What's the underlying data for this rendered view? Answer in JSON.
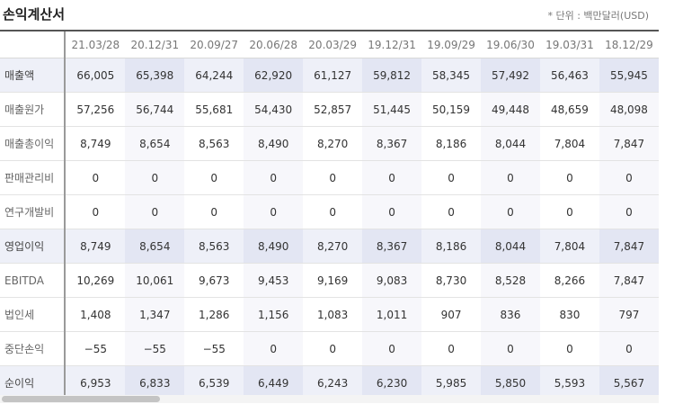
{
  "title": "손익계산서",
  "unit": "* 단위 : 백만달러(USD)",
  "columns": [
    "21.03/28",
    "20.12/31",
    "20.09/27",
    "20.06/28",
    "20.03/29",
    "19.12/31",
    "19.09/29",
    "19.06/30",
    "19.03/31",
    "18.12/29"
  ],
  "rows": [
    {
      "label": "매출액",
      "highlight": true,
      "values": [
        "66,005",
        "65,398",
        "64,244",
        "62,920",
        "61,127",
        "59,812",
        "58,345",
        "57,492",
        "56,463",
        "55,945"
      ]
    },
    {
      "label": "매출원가",
      "highlight": false,
      "values": [
        "57,256",
        "56,744",
        "55,681",
        "54,430",
        "52,857",
        "51,445",
        "50,159",
        "49,448",
        "48,659",
        "48,098"
      ]
    },
    {
      "label": "매출총이익",
      "highlight": false,
      "values": [
        "8,749",
        "8,654",
        "8,563",
        "8,490",
        "8,270",
        "8,367",
        "8,186",
        "8,044",
        "7,804",
        "7,847"
      ]
    },
    {
      "label": "판매관리비",
      "highlight": false,
      "values": [
        "0",
        "0",
        "0",
        "0",
        "0",
        "0",
        "0",
        "0",
        "0",
        "0"
      ]
    },
    {
      "label": "연구개발비",
      "highlight": false,
      "values": [
        "0",
        "0",
        "0",
        "0",
        "0",
        "0",
        "0",
        "0",
        "0",
        "0"
      ]
    },
    {
      "label": "영업이익",
      "highlight": true,
      "values": [
        "8,749",
        "8,654",
        "8,563",
        "8,490",
        "8,270",
        "8,367",
        "8,186",
        "8,044",
        "7,804",
        "7,847"
      ]
    },
    {
      "label": "EBITDA",
      "highlight": false,
      "values": [
        "10,269",
        "10,061",
        "9,673",
        "9,453",
        "9,169",
        "9,083",
        "8,730",
        "8,528",
        "8,266",
        "7,847"
      ]
    },
    {
      "label": "법인세",
      "highlight": false,
      "values": [
        "1,408",
        "1,347",
        "1,286",
        "1,156",
        "1,083",
        "1,011",
        "907",
        "836",
        "830",
        "797"
      ]
    },
    {
      "label": "중단손익",
      "highlight": false,
      "values": [
        "−55",
        "−55",
        "−55",
        "0",
        "0",
        "0",
        "0",
        "0",
        "0",
        "0"
      ]
    },
    {
      "label": "순이익",
      "highlight": true,
      "values": [
        "6,953",
        "6,833",
        "6,539",
        "6,449",
        "6,243",
        "6,230",
        "5,985",
        "5,850",
        "5,593",
        "5,567"
      ]
    }
  ]
}
